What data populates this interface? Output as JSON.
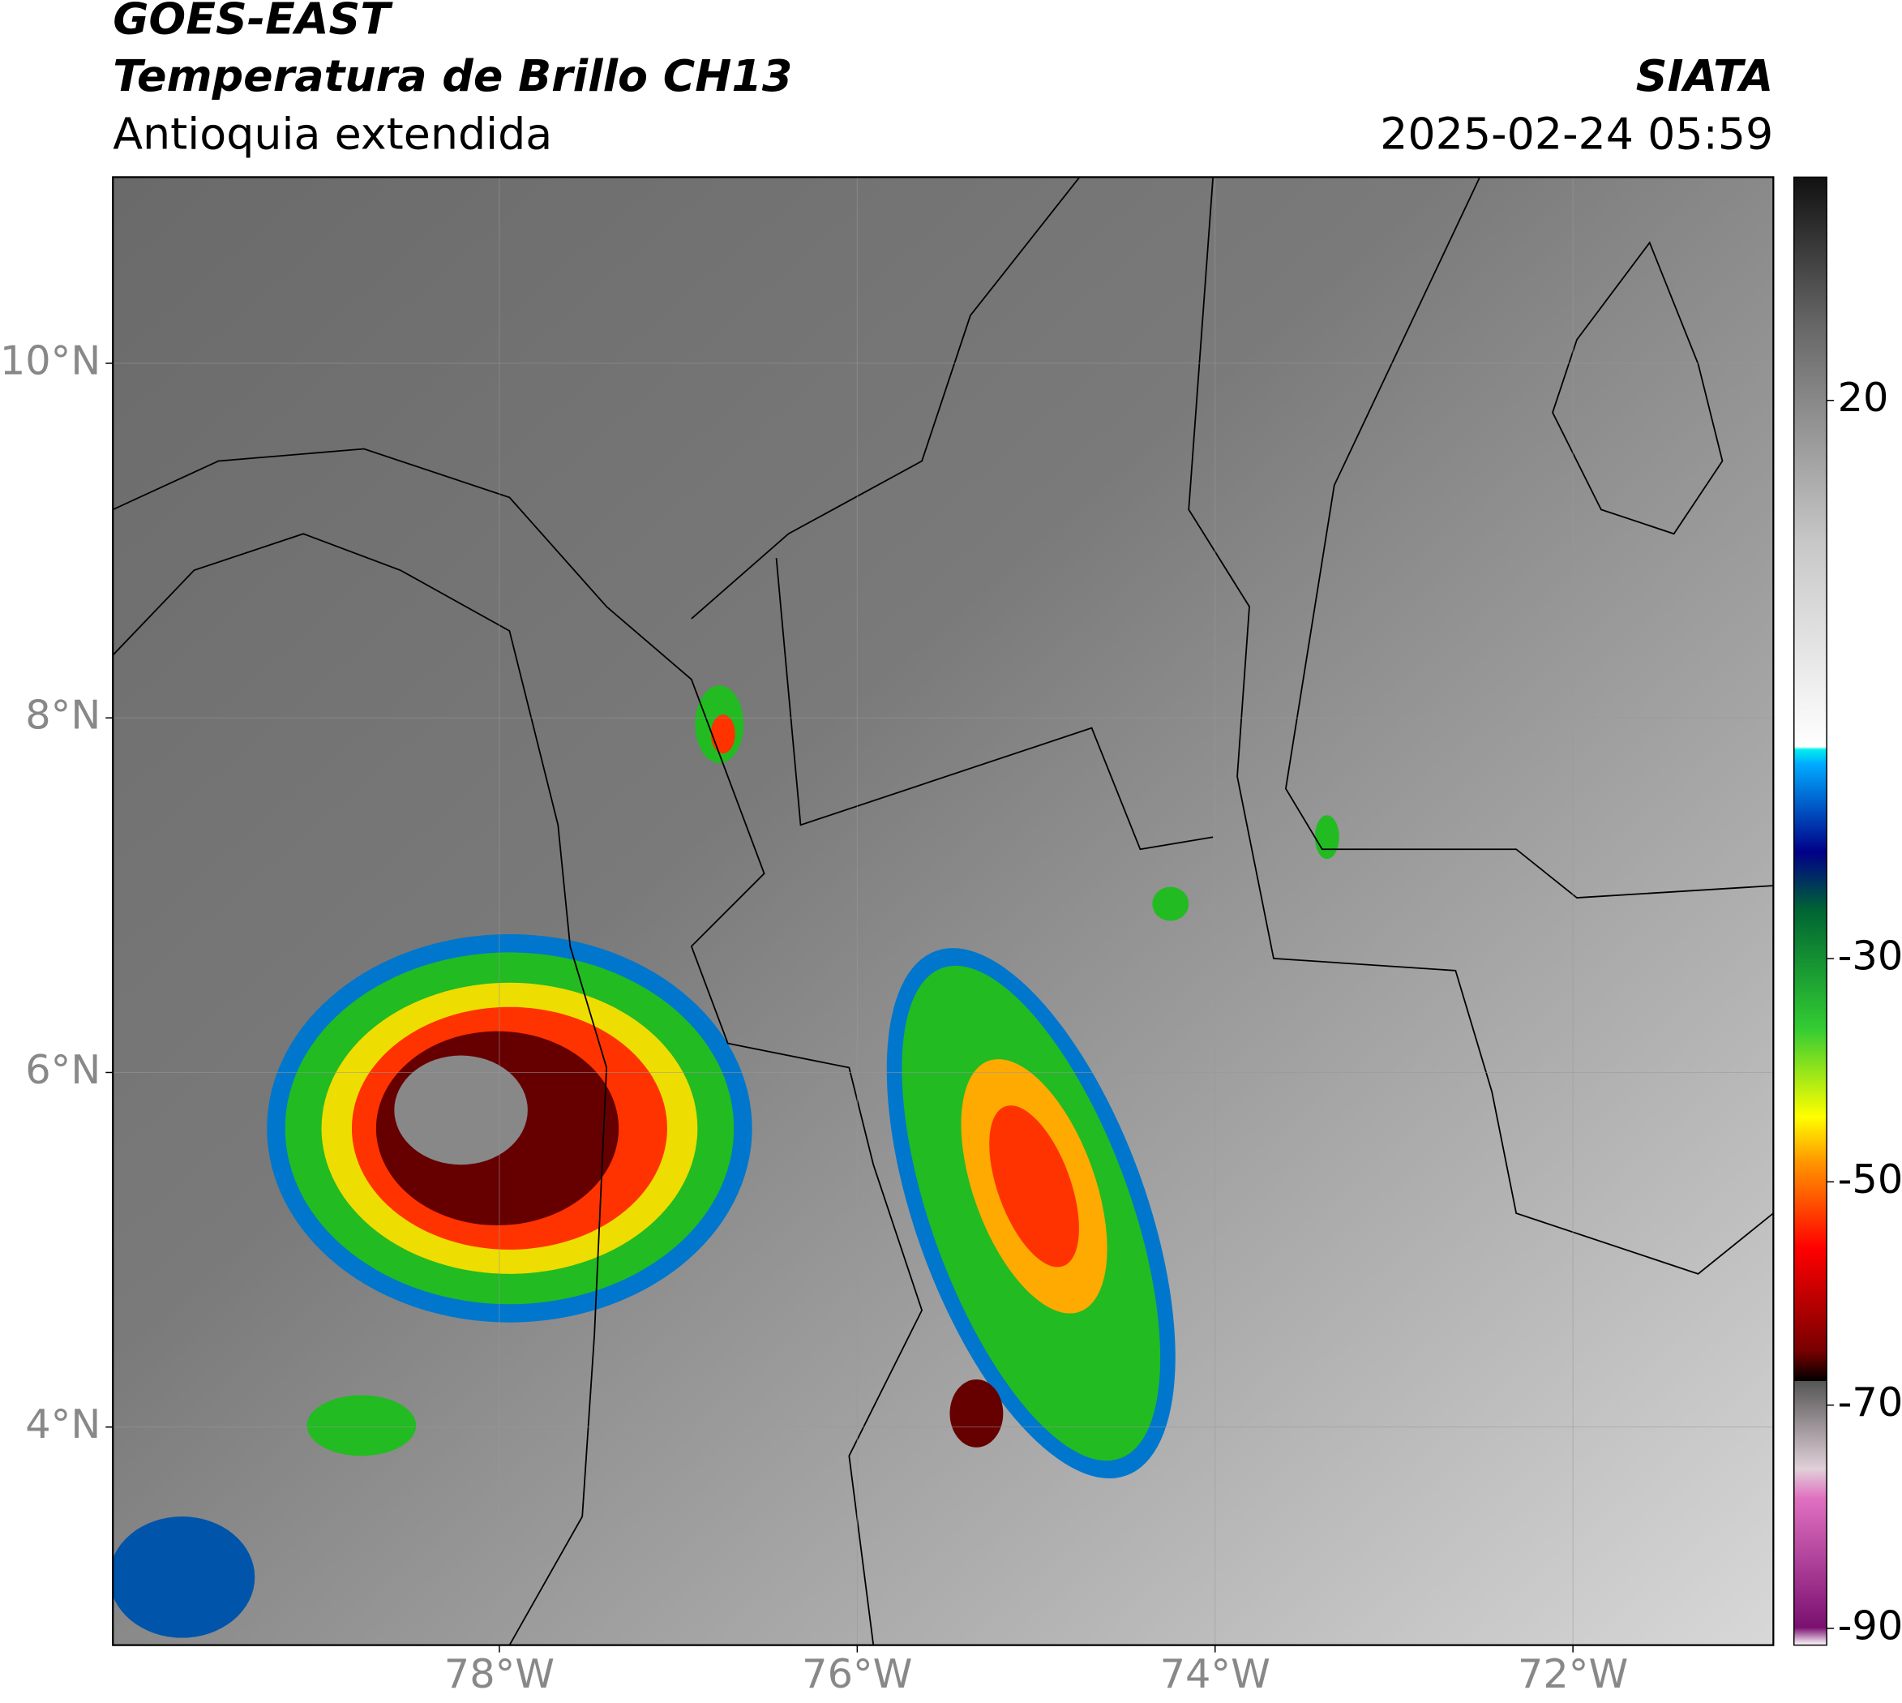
{
  "header": {
    "title": "GOES-EAST",
    "subtitle": "Temperatura de Brillo CH13",
    "region": "Antioquia extendida",
    "source": "SIATA",
    "datetime": "2025-02-24 05:59"
  },
  "map": {
    "xlim": [
      -80.16,
      -70.88
    ],
    "ylim": [
      2.77,
      11.05
    ],
    "xticks": [
      {
        "value": -78,
        "label": "78°W"
      },
      {
        "value": -76,
        "label": "76°W"
      },
      {
        "value": -74,
        "label": "74°W"
      },
      {
        "value": -72,
        "label": "72°W"
      }
    ],
    "yticks": [
      {
        "value": 10,
        "label": "10°N"
      },
      {
        "value": 8,
        "label": "8°N"
      },
      {
        "value": 6,
        "label": "6°N"
      },
      {
        "value": 4,
        "label": "4°N"
      }
    ]
  },
  "colorbar": {
    "lim": [
      -91.5,
      40
    ],
    "ticks": [
      20,
      -30,
      -50,
      -70,
      -90
    ]
  }
}
